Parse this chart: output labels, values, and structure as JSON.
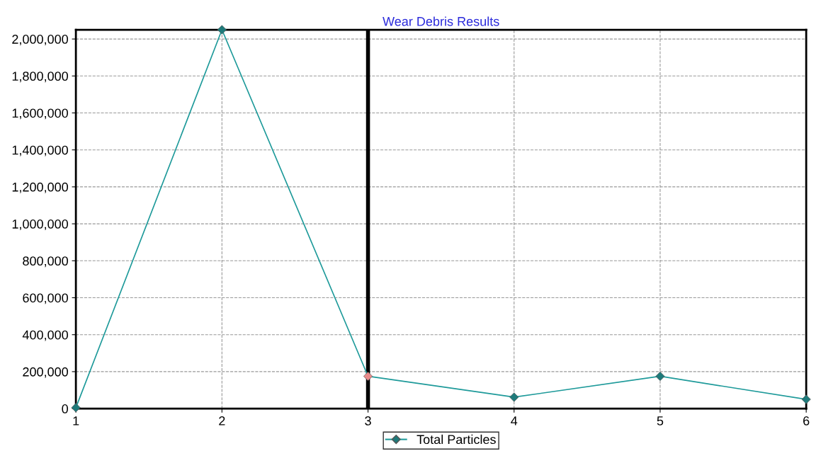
{
  "chart_data": {
    "type": "line",
    "title": "Wear Debris Results",
    "x": [
      1,
      2,
      3,
      4,
      5,
      6
    ],
    "series": [
      {
        "name": "Total Particles",
        "color": "#1e9a9a",
        "colors": [
          "#1e7a7a",
          "#1e7a7a",
          "#e88a8a",
          "#1e7a7a",
          "#1e7a7a",
          "#1e7a7a"
        ],
        "values": [
          5000,
          2050000,
          175000,
          62000,
          175000,
          50000
        ]
      }
    ],
    "xlim": [
      1,
      6
    ],
    "xticks": [
      1,
      2,
      3,
      4,
      5,
      6
    ],
    "ylim": [
      0,
      2050000
    ],
    "yticks": [
      {
        "value": 0,
        "label": "0"
      },
      {
        "value": 200000,
        "label": "200,000"
      },
      {
        "value": 400000,
        "label": "400,000"
      },
      {
        "value": 600000,
        "label": "600,000"
      },
      {
        "value": 800000,
        "label": "800,000"
      },
      {
        "value": 1000000,
        "label": "1,000,000"
      },
      {
        "value": 1200000,
        "label": "1,200,000"
      },
      {
        "value": 1400000,
        "label": "1,400,000"
      },
      {
        "value": 1600000,
        "label": "1,600,000"
      },
      {
        "value": 1800000,
        "label": "1,800,000"
      },
      {
        "value": 2000000,
        "label": "2,000,000"
      }
    ],
    "ref_lines": [
      {
        "axis": "x",
        "value": 3,
        "color": "#000000"
      }
    ],
    "grid": true,
    "legend": "bottom",
    "marker": "diamond",
    "line_style": "solid"
  }
}
